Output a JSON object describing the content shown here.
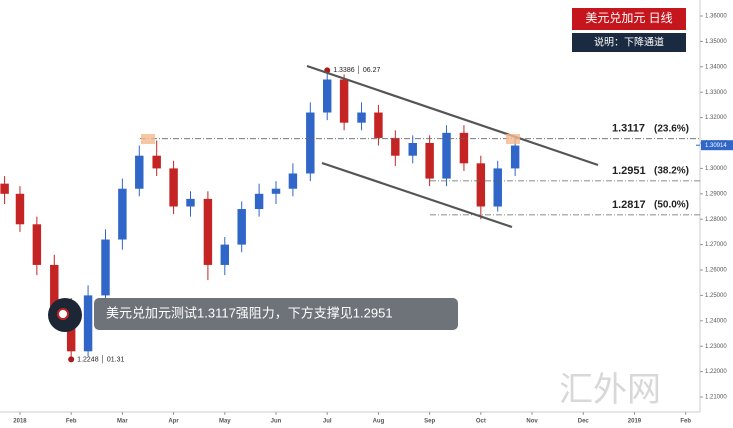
{
  "chart_data": {
    "type": "candlestick",
    "title": "美元兑加元  日线",
    "subtitle": "说明：下降通道",
    "caption": "美元兑加元测试1.3117强阻力，下方支撑见1.2951",
    "watermark": "汇外网",
    "x": [
      -0.3,
      0,
      0.33,
      0.67,
      1,
      1.33,
      1.67,
      2,
      2.33,
      2.67,
      3,
      3.33,
      3.67,
      4,
      4.33,
      4.67,
      5,
      5.33,
      5.67,
      6,
      6.33,
      6.67,
      7,
      7.33,
      7.67,
      8,
      8.33,
      8.67,
      9,
      9.33,
      9.67
    ],
    "open": [
      1.294,
      1.29,
      1.278,
      1.262,
      1.245,
      1.228,
      1.25,
      1.272,
      1.292,
      1.305,
      1.3,
      1.285,
      1.288,
      1.262,
      1.27,
      1.284,
      1.29,
      1.292,
      1.298,
      1.322,
      1.335,
      1.318,
      1.322,
      1.312,
      1.305,
      1.31,
      1.296,
      1.314,
      1.302,
      1.285,
      1.3
    ],
    "high": [
      1.297,
      1.293,
      1.281,
      1.266,
      1.249,
      1.254,
      1.276,
      1.296,
      1.309,
      1.311,
      1.303,
      1.291,
      1.291,
      1.273,
      1.287,
      1.294,
      1.295,
      1.302,
      1.326,
      1.3386,
      1.337,
      1.326,
      1.325,
      1.315,
      1.313,
      1.313,
      1.317,
      1.317,
      1.305,
      1.303,
      1.3117
    ],
    "low": [
      1.286,
      1.275,
      1.258,
      1.241,
      1.2248,
      1.226,
      1.247,
      1.268,
      1.289,
      1.297,
      1.282,
      1.281,
      1.256,
      1.258,
      1.267,
      1.281,
      1.286,
      1.289,
      1.295,
      1.319,
      1.315,
      1.315,
      1.309,
      1.301,
      1.302,
      1.293,
      1.293,
      1.299,
      1.28,
      1.283,
      1.297
    ],
    "close": [
      1.29,
      1.278,
      1.262,
      1.245,
      1.228,
      1.25,
      1.272,
      1.292,
      1.305,
      1.3,
      1.285,
      1.288,
      1.262,
      1.27,
      1.284,
      1.29,
      1.292,
      1.298,
      1.322,
      1.335,
      1.318,
      1.322,
      1.312,
      1.305,
      1.31,
      1.296,
      1.314,
      1.302,
      1.285,
      1.3,
      1.309
    ],
    "up_color": "#2f66c8",
    "down_color": "#c42424",
    "xlim": [
      -0.39,
      13.28
    ],
    "xticks": [
      {
        "value": 0,
        "label": "2018"
      },
      {
        "value": 1,
        "label": "Feb"
      },
      {
        "value": 2,
        "label": "Mar"
      },
      {
        "value": 3,
        "label": "Apr"
      },
      {
        "value": 4,
        "label": "May"
      },
      {
        "value": 5,
        "label": "Jun"
      },
      {
        "value": 6,
        "label": "Jul"
      },
      {
        "value": 7,
        "label": "Aug"
      },
      {
        "value": 8,
        "label": "Sep"
      },
      {
        "value": 9,
        "label": "Oct"
      },
      {
        "value": 10,
        "label": "Nov"
      },
      {
        "value": 11,
        "label": "Dec"
      },
      {
        "value": 12,
        "label": "2019"
      },
      {
        "value": 13,
        "label": "Feb"
      }
    ],
    "ylim": [
      1.2041,
      1.3663
    ],
    "yticks": [
      {
        "value": 1.21,
        "label": "1.21000"
      },
      {
        "value": 1.22,
        "label": "1.22000"
      },
      {
        "value": 1.23,
        "label": "1.23000"
      },
      {
        "value": 1.24,
        "label": "1.24000"
      },
      {
        "value": 1.25,
        "label": "1.25000"
      },
      {
        "value": 1.26,
        "label": "1.26000"
      },
      {
        "value": 1.27,
        "label": "1.27000"
      },
      {
        "value": 1.28,
        "label": "1.28000"
      },
      {
        "value": 1.29,
        "label": "1.29000"
      },
      {
        "value": 1.3,
        "label": "1.30000"
      },
      {
        "value": 1.31,
        "label": "1.31000"
      },
      {
        "value": 1.32,
        "label": "1.32000"
      },
      {
        "value": 1.33,
        "label": "1.33000"
      },
      {
        "value": 1.34,
        "label": "1.34000"
      },
      {
        "value": 1.35,
        "label": "1.35000"
      },
      {
        "value": 1.36,
        "label": "1.36000"
      }
    ],
    "last_price": {
      "value": 1.30914,
      "label": "1.30914"
    },
    "levels": [
      {
        "value": 1.3117,
        "ratio": "(23.6%)"
      },
      {
        "value": 1.2951,
        "ratio": "(38.2%)"
      },
      {
        "value": 1.2817,
        "ratio": "(50.0%)"
      }
    ],
    "annotations": [
      {
        "text": "1.3386 │ 06.27",
        "x": 6,
        "y": 1.3386
      },
      {
        "text": "1.2248 │ 01.31",
        "x": 1,
        "y": 1.2248
      }
    ]
  }
}
